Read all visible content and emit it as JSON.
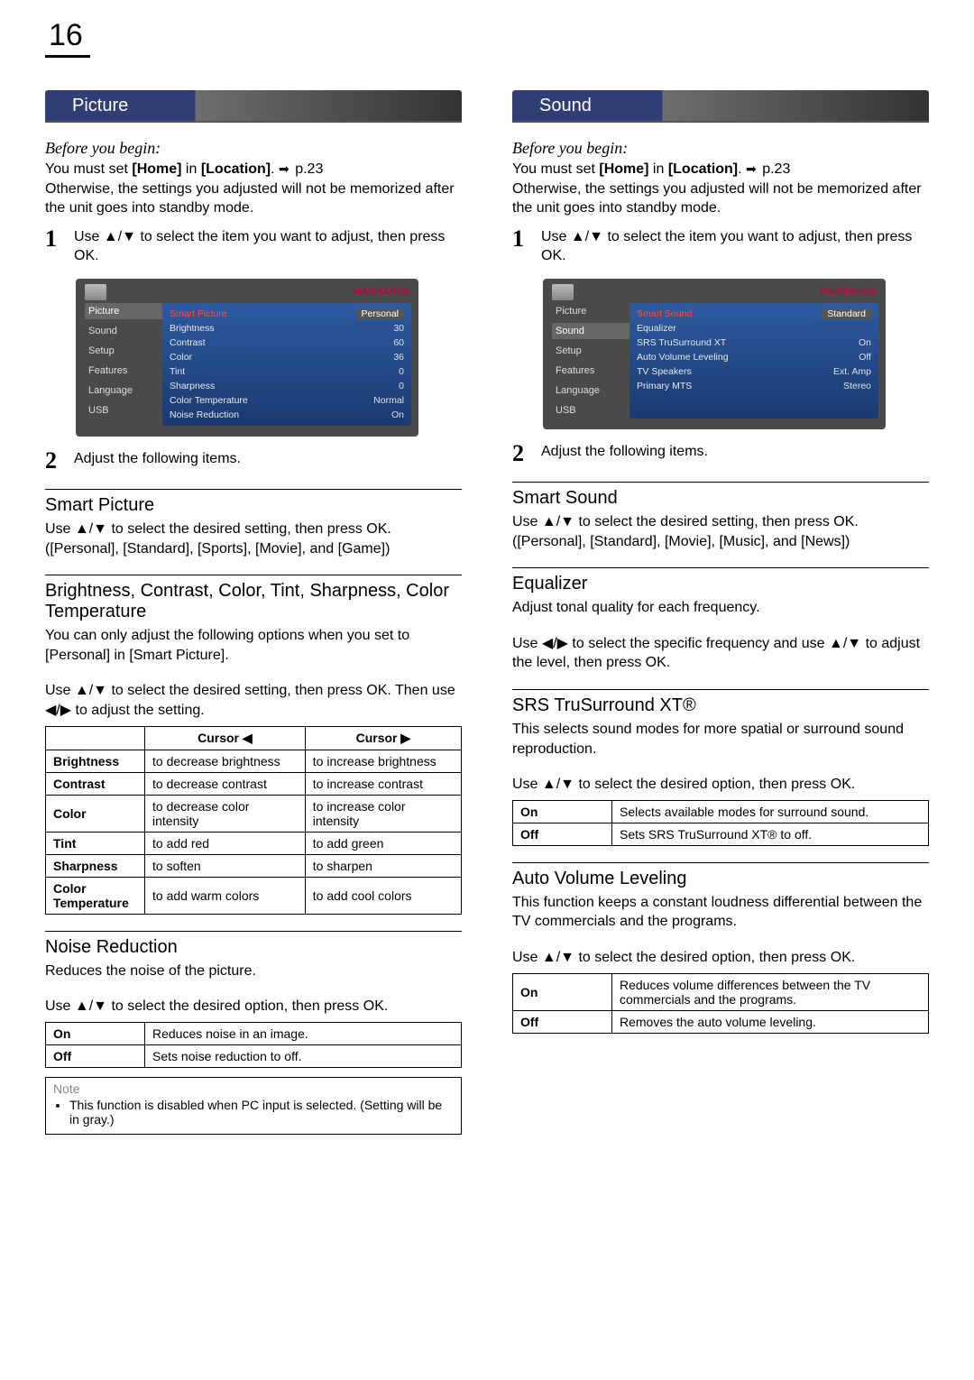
{
  "page_number": "16",
  "brand": "MAGNAVOX",
  "common": {
    "before_begin": "Before you begin:",
    "must_set_prefix": "You must set ",
    "home": "[Home]",
    "in": " in ",
    "location": "[Location]",
    "pref": " p.23",
    "otherwise": "Otherwise, the settings you adjusted will not be memorized after the unit goes into standby mode.",
    "step1": "Use ▲/▼ to select the item you want to adjust, then press OK.",
    "step2": "Adjust the following items.",
    "nav_items": [
      "Picture",
      "Sound",
      "Setup",
      "Features",
      "Language",
      "USB"
    ]
  },
  "picture": {
    "tab": "Picture",
    "osd_active": "Picture",
    "osd_rows": [
      {
        "label": "Smart Picture",
        "val": "Personal",
        "hl": true
      },
      {
        "label": "Brightness",
        "val": "30"
      },
      {
        "label": "Contrast",
        "val": "60"
      },
      {
        "label": "Color",
        "val": "36"
      },
      {
        "label": "Tint",
        "val": "0"
      },
      {
        "label": "Sharpness",
        "val": "0"
      },
      {
        "label": "Color Temperature",
        "val": "Normal"
      },
      {
        "label": "Noise Reduction",
        "val": "On"
      }
    ],
    "smart_picture_title": "Smart Picture",
    "smart_picture_text1": "Use ▲/▼ to select the desired setting, then press OK.",
    "smart_picture_text2": "([Personal], [Standard], [Sports], [Movie], and [Game])",
    "adj_title": "Brightness, Contrast, Color, Tint, Sharpness, Color Temperature",
    "adj_text1": "You can only adjust the following options when you set to [Personal] in [Smart Picture].",
    "adj_text2": "Use ▲/▼ to select the desired setting, then press OK. Then use ◀/▶ to adjust the setting.",
    "adj_table": {
      "head": [
        "",
        "Cursor ◀",
        "Cursor ▶"
      ],
      "rows": [
        [
          "Brightness",
          "to decrease brightness",
          "to increase brightness"
        ],
        [
          "Contrast",
          "to decrease contrast",
          "to increase contrast"
        ],
        [
          "Color",
          "to decrease color intensity",
          "to increase color intensity"
        ],
        [
          "Tint",
          "to add red",
          "to add green"
        ],
        [
          "Sharpness",
          "to soften",
          "to sharpen"
        ],
        [
          "Color Temperature",
          "to add warm colors",
          "to add cool colors"
        ]
      ]
    },
    "noise_title": "Noise Reduction",
    "noise_text1": "Reduces the noise of the picture.",
    "noise_text2": "Use ▲/▼ to select the desired option, then press OK.",
    "noise_table": [
      [
        "On",
        "Reduces noise in an image."
      ],
      [
        "Off",
        "Sets noise reduction to off."
      ]
    ],
    "note_label": "Note",
    "note_item": "This function is disabled when PC input is selected. (Setting will be in gray.)"
  },
  "sound": {
    "tab": "Sound",
    "osd_active": "Sound",
    "osd_rows": [
      {
        "label": "Smart Sound",
        "val": "Standard",
        "hl": true
      },
      {
        "label": "Equalizer",
        "val": ""
      },
      {
        "label": "SRS TruSurround XT",
        "val": "On"
      },
      {
        "label": "Auto Volume Leveling",
        "val": "Off"
      },
      {
        "label": "TV Speakers",
        "val": "Ext. Amp"
      },
      {
        "label": "Primary MTS",
        "val": "Stereo"
      }
    ],
    "smart_sound_title": "Smart Sound",
    "smart_sound_text1": "Use ▲/▼ to select the desired setting, then press OK.",
    "smart_sound_text2": "([Personal], [Standard], [Movie], [Music], and [News])",
    "eq_title": "Equalizer",
    "eq_text1": "Adjust tonal quality for each frequency.",
    "eq_text2": "Use ◀/▶ to select the specific frequency and use ▲/▼ to adjust the level, then press OK.",
    "srs_title": "SRS TruSurround XT®",
    "srs_text1": "This selects sound modes for more spatial or surround sound reproduction.",
    "srs_text2": "Use ▲/▼ to select the desired option, then press OK.",
    "srs_table": [
      [
        "On",
        "Selects available modes for surround sound."
      ],
      [
        "Off",
        "Sets SRS TruSurround XT® to off."
      ]
    ],
    "avl_title": "Auto Volume Leveling",
    "avl_text1": "This function keeps a constant loudness differential between the TV commercials and the programs.",
    "avl_text2": "Use ▲/▼ to select the desired option, then press OK.",
    "avl_table": [
      [
        "On",
        "Reduces volume differences between the TV commercials and the programs."
      ],
      [
        "Off",
        "Removes the auto volume leveling."
      ]
    ]
  }
}
